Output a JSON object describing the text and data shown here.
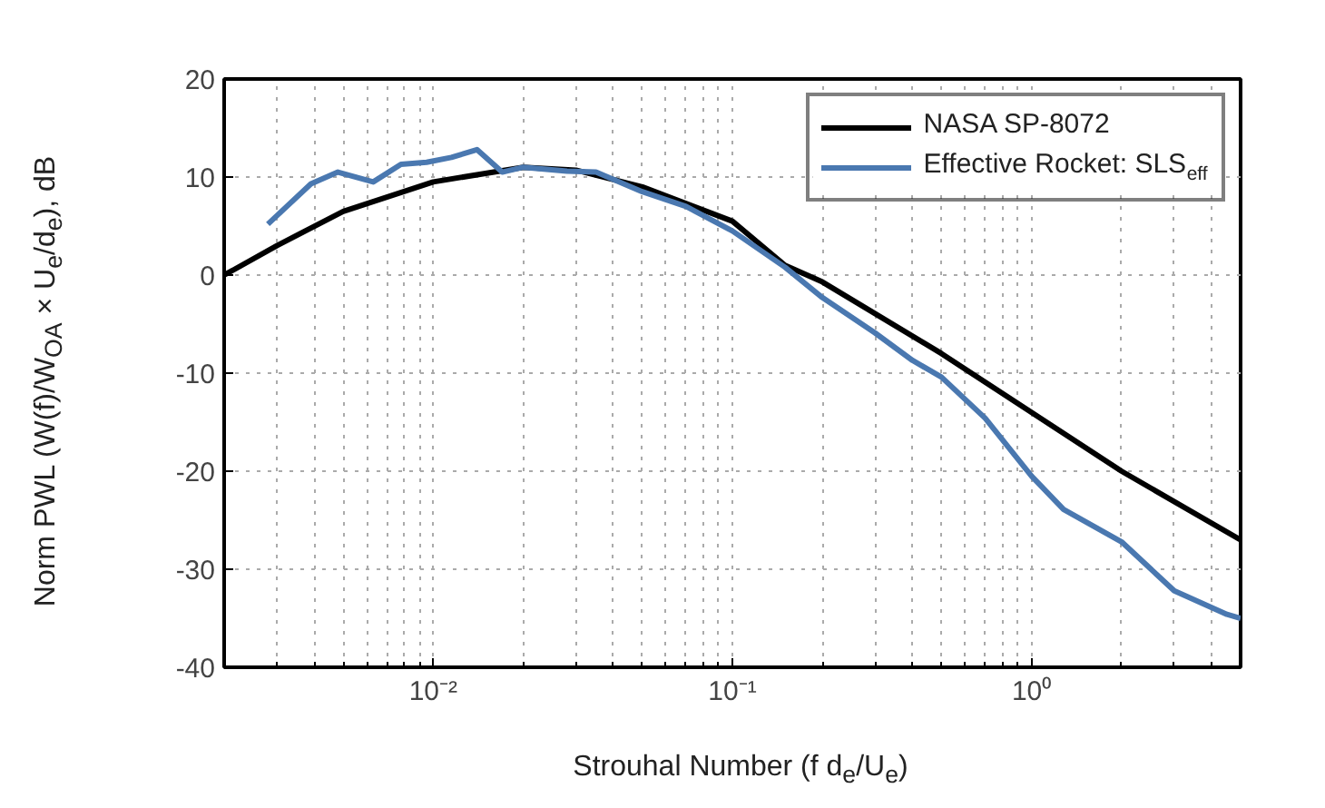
{
  "chart_data": {
    "type": "line",
    "xlabel": "Strouhal Number (f d$_{e}$/U$_{e}$)",
    "ylabel": "Norm PWL (W(f)/W$_{OA}$ × U$_{e}$/d$_{e}$), dB",
    "log": "x",
    "grid": true,
    "legend": "top right",
    "line_style": "solid",
    "marker": "none",
    "xlim": [
      0.002,
      5
    ],
    "ylim": [
      -40,
      20
    ],
    "xticks": [
      {
        "value": 0.01,
        "label": "10⁻²"
      },
      {
        "value": 0.1,
        "label": "10⁻¹"
      },
      {
        "value": 1,
        "label": "10⁰"
      }
    ],
    "yticks": [
      -40,
      -30,
      -20,
      -10,
      0,
      10,
      20
    ],
    "series": [
      {
        "name": "NASA SP-8072",
        "color": "#000000",
        "x": [
          0.002,
          0.003,
          0.005,
          0.01,
          0.02,
          0.03,
          0.05,
          0.1,
          0.15,
          0.2,
          0.5,
          1,
          2,
          5
        ],
        "values": [
          0,
          3,
          6.5,
          9.5,
          11,
          10.7,
          9,
          5.5,
          1,
          -0.7,
          -8,
          -14,
          -20,
          -27
        ]
      },
      {
        "name": "Effective Rocket: SLS$_{eff}$",
        "color": "#4a78b0",
        "x": [
          0.0028,
          0.0039,
          0.0048,
          0.0063,
          0.0078,
          0.0095,
          0.0115,
          0.014,
          0.017,
          0.02,
          0.028,
          0.035,
          0.05,
          0.07,
          0.1,
          0.15,
          0.2,
          0.3,
          0.4,
          0.5,
          0.7,
          1,
          1.28,
          2,
          3,
          4.5,
          5
        ],
        "values": [
          5.2,
          9.3,
          10.5,
          9.5,
          11.3,
          11.5,
          12,
          12.8,
          10.5,
          11,
          10.6,
          10.5,
          8.5,
          7,
          4.5,
          0.8,
          -2.3,
          -5.9,
          -8.7,
          -10.4,
          -14.6,
          -20.5,
          -23.9,
          -27.2,
          -32.2,
          -34.6,
          -35
        ]
      }
    ]
  }
}
